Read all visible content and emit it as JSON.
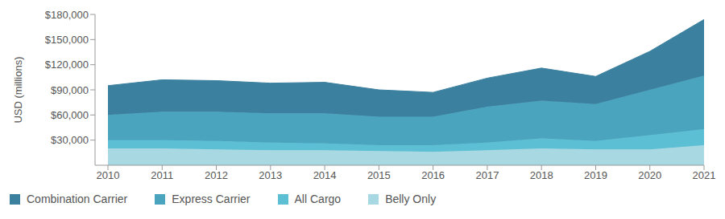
{
  "chart_data": {
    "type": "area",
    "stacked": true,
    "y_label": "USD (millions)",
    "categories": [
      "2010",
      "2011",
      "2012",
      "2013",
      "2014",
      "2015",
      "2016",
      "2017",
      "2018",
      "2019",
      "2020",
      "2021"
    ],
    "series": [
      {
        "name": "Combination Carrier",
        "color": "#3b809f",
        "values": [
          35000,
          38000,
          37000,
          36000,
          37000,
          32000,
          29000,
          34000,
          39000,
          33000,
          46000,
          67000
        ]
      },
      {
        "name": "Express Carrier",
        "color": "#4aa4be",
        "values": [
          30000,
          34000,
          35000,
          35000,
          36000,
          34000,
          34000,
          43000,
          45000,
          44000,
          54000,
          64000
        ]
      },
      {
        "name": "All Cargo",
        "color": "#5dbfd3",
        "values": [
          10000,
          10000,
          10000,
          9000,
          8000,
          7000,
          8000,
          9000,
          12000,
          10000,
          17000,
          19000
        ]
      },
      {
        "name": "Belly Only",
        "color": "#a8d9e3",
        "values": [
          20000,
          20000,
          19000,
          18000,
          18000,
          17000,
          16000,
          18000,
          20000,
          19000,
          19000,
          24000
        ]
      }
    ],
    "ylim": [
      0,
      180000
    ],
    "yticks": [
      {
        "value": 30000,
        "label": "$30,000"
      },
      {
        "value": 60000,
        "label": "$60,000"
      },
      {
        "value": 90000,
        "label": "$90,000"
      },
      {
        "value": 120000,
        "label": "$120,000"
      },
      {
        "value": 150000,
        "label": "$150,000"
      },
      {
        "value": 180000,
        "label": "$180,000"
      }
    ],
    "grid": false,
    "legend": "bottom"
  }
}
